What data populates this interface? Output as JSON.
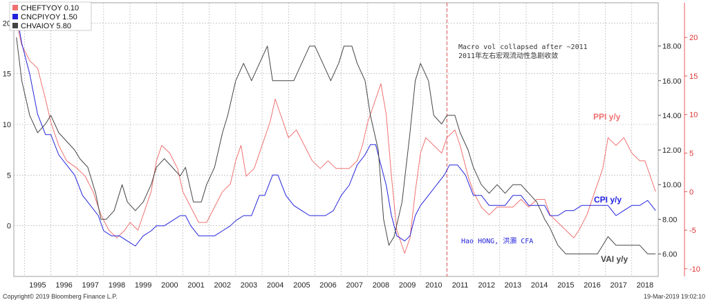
{
  "legend": [
    {
      "label": "CHEFTYOY 0.10",
      "color": "#f07070"
    },
    {
      "label": "CNCPIYOY 1.50",
      "color": "#2222dd"
    },
    {
      "label": "CHVAIOY  5.80",
      "color": "#444444"
    }
  ],
  "annotation": {
    "line1": "Macro vol collapsed after ~2011",
    "line2": "2011年左右宏观流动性急剧收敛",
    "author": "Hao HONG, 洪灝 CFA"
  },
  "series_labels": {
    "ppi": "PPI y/y",
    "cpi": "CPI y/y",
    "vai": "VAI y/y"
  },
  "footer": {
    "copyright": "Copyright© 2019 Bloomberg Finance L.P.",
    "date": "19-Mar-2019 19:02:10"
  },
  "colors": {
    "ppi": "#f07070",
    "cpi": "#2222dd",
    "vai": "#444444",
    "marker": "#e05050",
    "right_inner": "#222222",
    "right_outer": "#e03030"
  },
  "chart_data": {
    "type": "line",
    "x_ticks": [
      "1995",
      "1996",
      "1997",
      "1998",
      "1999",
      "2000",
      "2001",
      "2002",
      "2003",
      "2004",
      "2005",
      "2006",
      "2007",
      "2008",
      "2009",
      "2010",
      "2011",
      "2012",
      "2013",
      "2014",
      "2015",
      "2016",
      "2017",
      "2018"
    ],
    "x_range": [
      1994.6,
      2019.0
    ],
    "left_axis": {
      "ticks": [
        "20",
        "15",
        "10",
        "5",
        "0"
      ],
      "range": [
        -5,
        22
      ]
    },
    "right_inner_axis": {
      "ticks": [
        "18.00",
        "16.00",
        "14.00",
        "12.00",
        "10.00",
        "8.00",
        "6.00"
      ],
      "range": [
        4.7,
        20.5
      ]
    },
    "right_outer_axis": {
      "ticks": [
        "20",
        "15",
        "10",
        "5",
        "0",
        "-5",
        "-10"
      ],
      "range": [
        -11,
        24.5
      ]
    },
    "vline_x": 2011.0,
    "series": [
      {
        "name": "CHEFTYOY",
        "key": "ppi",
        "axis": "right_outer",
        "points": [
          [
            1994.7,
            22
          ],
          [
            1994.9,
            19
          ],
          [
            1995.2,
            17
          ],
          [
            1995.5,
            16
          ],
          [
            1995.8,
            12
          ],
          [
            1996.0,
            9
          ],
          [
            1996.3,
            6
          ],
          [
            1996.6,
            4
          ],
          [
            1997.0,
            3
          ],
          [
            1997.3,
            2
          ],
          [
            1997.6,
            0
          ],
          [
            1997.9,
            -3
          ],
          [
            1998.2,
            -5
          ],
          [
            1998.5,
            -6
          ],
          [
            1998.8,
            -5
          ],
          [
            1999.0,
            -4
          ],
          [
            1999.3,
            -5
          ],
          [
            1999.6,
            -2
          ],
          [
            1999.8,
            0
          ],
          [
            2000.0,
            4
          ],
          [
            2000.2,
            6
          ],
          [
            2000.5,
            5
          ],
          [
            2000.8,
            3
          ],
          [
            2001.0,
            0
          ],
          [
            2001.3,
            -2
          ],
          [
            2001.6,
            -4
          ],
          [
            2001.9,
            -4
          ],
          [
            2002.2,
            -2
          ],
          [
            2002.5,
            0
          ],
          [
            2002.8,
            1
          ],
          [
            2003.0,
            4
          ],
          [
            2003.2,
            6
          ],
          [
            2003.4,
            2
          ],
          [
            2003.7,
            3
          ],
          [
            2004.0,
            6
          ],
          [
            2004.3,
            9
          ],
          [
            2004.5,
            12
          ],
          [
            2004.8,
            9
          ],
          [
            2005.0,
            7
          ],
          [
            2005.3,
            8
          ],
          [
            2005.6,
            6
          ],
          [
            2005.9,
            4
          ],
          [
            2006.2,
            3
          ],
          [
            2006.5,
            4
          ],
          [
            2006.8,
            3
          ],
          [
            2007.0,
            3
          ],
          [
            2007.3,
            3
          ],
          [
            2007.6,
            4
          ],
          [
            2007.8,
            6
          ],
          [
            2008.0,
            9
          ],
          [
            2008.3,
            12
          ],
          [
            2008.5,
            14
          ],
          [
            2008.7,
            10
          ],
          [
            2008.9,
            2
          ],
          [
            2009.1,
            -5
          ],
          [
            2009.4,
            -8
          ],
          [
            2009.6,
            -6
          ],
          [
            2009.8,
            0
          ],
          [
            2010.0,
            5
          ],
          [
            2010.2,
            7
          ],
          [
            2010.5,
            6
          ],
          [
            2010.8,
            5
          ],
          [
            2011.0,
            7
          ],
          [
            2011.3,
            8
          ],
          [
            2011.5,
            6
          ],
          [
            2011.8,
            2
          ],
          [
            2012.0,
            0
          ],
          [
            2012.3,
            -2
          ],
          [
            2012.6,
            -3
          ],
          [
            2012.9,
            -2
          ],
          [
            2013.2,
            -2
          ],
          [
            2013.5,
            -2
          ],
          [
            2013.8,
            -1
          ],
          [
            2014.1,
            -2
          ],
          [
            2014.4,
            -1
          ],
          [
            2014.7,
            -1
          ],
          [
            2014.9,
            -3
          ],
          [
            2015.2,
            -4
          ],
          [
            2015.5,
            -5
          ],
          [
            2015.8,
            -6
          ],
          [
            2016.0,
            -5
          ],
          [
            2016.3,
            -3
          ],
          [
            2016.6,
            0
          ],
          [
            2016.9,
            3
          ],
          [
            2017.1,
            7
          ],
          [
            2017.4,
            6
          ],
          [
            2017.7,
            7
          ],
          [
            2018.0,
            5
          ],
          [
            2018.3,
            4
          ],
          [
            2018.5,
            4
          ],
          [
            2018.7,
            2
          ],
          [
            2018.9,
            0
          ]
        ]
      },
      {
        "name": "CNCPIYOY",
        "key": "cpi",
        "axis": "left",
        "points": [
          [
            1994.7,
            21
          ],
          [
            1994.9,
            18
          ],
          [
            1995.2,
            15
          ],
          [
            1995.5,
            11
          ],
          [
            1995.8,
            9
          ],
          [
            1996.0,
            9
          ],
          [
            1996.3,
            7
          ],
          [
            1996.6,
            6
          ],
          [
            1996.9,
            5
          ],
          [
            1997.2,
            3
          ],
          [
            1997.5,
            2
          ],
          [
            1997.8,
            1
          ],
          [
            1998.0,
            -0.5
          ],
          [
            1998.3,
            -1
          ],
          [
            1998.6,
            -1
          ],
          [
            1998.9,
            -1.5
          ],
          [
            1999.2,
            -2
          ],
          [
            1999.5,
            -1
          ],
          [
            1999.8,
            -0.5
          ],
          [
            2000.0,
            0
          ],
          [
            2000.3,
            0
          ],
          [
            2000.6,
            0.5
          ],
          [
            2000.9,
            1
          ],
          [
            2001.1,
            1
          ],
          [
            2001.3,
            0
          ],
          [
            2001.6,
            -1
          ],
          [
            2001.9,
            -1
          ],
          [
            2002.2,
            -1
          ],
          [
            2002.5,
            -0.5
          ],
          [
            2002.8,
            0
          ],
          [
            2003.0,
            0.5
          ],
          [
            2003.3,
            1
          ],
          [
            2003.6,
            1
          ],
          [
            2003.9,
            3
          ],
          [
            2004.1,
            3
          ],
          [
            2004.4,
            5
          ],
          [
            2004.6,
            5
          ],
          [
            2004.9,
            3
          ],
          [
            2005.2,
            2
          ],
          [
            2005.5,
            1.5
          ],
          [
            2005.8,
            1
          ],
          [
            2006.1,
            1
          ],
          [
            2006.4,
            1
          ],
          [
            2006.7,
            1.5
          ],
          [
            2007.0,
            3
          ],
          [
            2007.3,
            4
          ],
          [
            2007.6,
            6
          ],
          [
            2007.9,
            7
          ],
          [
            2008.1,
            8
          ],
          [
            2008.3,
            8
          ],
          [
            2008.5,
            6
          ],
          [
            2008.7,
            4
          ],
          [
            2008.9,
            1
          ],
          [
            2009.1,
            -1
          ],
          [
            2009.4,
            -1.5
          ],
          [
            2009.6,
            -1
          ],
          [
            2009.8,
            1
          ],
          [
            2010.0,
            2
          ],
          [
            2010.3,
            3
          ],
          [
            2010.6,
            4
          ],
          [
            2010.9,
            5
          ],
          [
            2011.1,
            6
          ],
          [
            2011.4,
            6
          ],
          [
            2011.7,
            5
          ],
          [
            2012.0,
            3
          ],
          [
            2012.3,
            3
          ],
          [
            2012.6,
            2
          ],
          [
            2012.9,
            2
          ],
          [
            2013.2,
            2
          ],
          [
            2013.5,
            3
          ],
          [
            2013.8,
            3
          ],
          [
            2014.1,
            2
          ],
          [
            2014.4,
            2
          ],
          [
            2014.7,
            2
          ],
          [
            2014.9,
            1
          ],
          [
            2015.2,
            1
          ],
          [
            2015.5,
            1.5
          ],
          [
            2015.8,
            1.5
          ],
          [
            2016.1,
            2
          ],
          [
            2016.4,
            2
          ],
          [
            2016.7,
            2
          ],
          [
            2016.9,
            2
          ],
          [
            2017.1,
            2
          ],
          [
            2017.4,
            1
          ],
          [
            2017.7,
            1.5
          ],
          [
            2018.0,
            2
          ],
          [
            2018.3,
            2
          ],
          [
            2018.6,
            2.5
          ],
          [
            2018.9,
            1.5
          ]
        ]
      },
      {
        "name": "CHVAIOY",
        "key": "vai",
        "axis": "right_inner",
        "points": [
          [
            1994.7,
            18.5
          ],
          [
            1994.9,
            16
          ],
          [
            1995.2,
            14
          ],
          [
            1995.5,
            13
          ],
          [
            1995.8,
            13.5
          ],
          [
            1996.0,
            14
          ],
          [
            1996.3,
            13
          ],
          [
            1996.6,
            12.5
          ],
          [
            1996.9,
            12
          ],
          [
            1997.1,
            11.5
          ],
          [
            1997.4,
            11
          ],
          [
            1997.7,
            9.5
          ],
          [
            1997.9,
            8
          ],
          [
            1998.1,
            8
          ],
          [
            1998.4,
            8.5
          ],
          [
            1998.7,
            10
          ],
          [
            1998.9,
            9
          ],
          [
            1999.2,
            8.5
          ],
          [
            1999.5,
            9
          ],
          [
            1999.8,
            10
          ],
          [
            2000.0,
            11
          ],
          [
            2000.3,
            11.5
          ],
          [
            2000.6,
            11
          ],
          [
            2000.9,
            10.5
          ],
          [
            2001.1,
            11
          ],
          [
            2001.4,
            9
          ],
          [
            2001.7,
            9
          ],
          [
            2001.9,
            10
          ],
          [
            2002.2,
            11
          ],
          [
            2002.5,
            13
          ],
          [
            2002.7,
            14
          ],
          [
            2003.0,
            16
          ],
          [
            2003.3,
            17
          ],
          [
            2003.6,
            16
          ],
          [
            2003.9,
            17
          ],
          [
            2004.2,
            18
          ],
          [
            2004.4,
            16
          ],
          [
            2004.7,
            16
          ],
          [
            2004.9,
            16
          ],
          [
            2005.2,
            16
          ],
          [
            2005.5,
            17
          ],
          [
            2005.8,
            18
          ],
          [
            2006.0,
            18
          ],
          [
            2006.3,
            17
          ],
          [
            2006.6,
            16
          ],
          [
            2006.9,
            17
          ],
          [
            2007.1,
            18
          ],
          [
            2007.4,
            18
          ],
          [
            2007.6,
            17
          ],
          [
            2007.9,
            16
          ],
          [
            2008.1,
            14
          ],
          [
            2008.4,
            12
          ],
          [
            2008.6,
            8
          ],
          [
            2008.8,
            6.5
          ],
          [
            2009.0,
            7
          ],
          [
            2009.3,
            9
          ],
          [
            2009.6,
            13
          ],
          [
            2009.8,
            16
          ],
          [
            2010.0,
            17
          ],
          [
            2010.3,
            16
          ],
          [
            2010.5,
            14
          ],
          [
            2010.8,
            13.5
          ],
          [
            2011.0,
            14
          ],
          [
            2011.3,
            14
          ],
          [
            2011.5,
            13
          ],
          [
            2011.8,
            12
          ],
          [
            2012.0,
            11
          ],
          [
            2012.3,
            10
          ],
          [
            2012.6,
            9.5
          ],
          [
            2012.9,
            10
          ],
          [
            2013.2,
            9.5
          ],
          [
            2013.5,
            10
          ],
          [
            2013.8,
            10
          ],
          [
            2014.1,
            9.5
          ],
          [
            2014.4,
            9
          ],
          [
            2014.7,
            8
          ],
          [
            2014.9,
            7.5
          ],
          [
            2015.2,
            6.5
          ],
          [
            2015.5,
            6
          ],
          [
            2015.8,
            6
          ],
          [
            2016.1,
            6
          ],
          [
            2016.4,
            6
          ],
          [
            2016.7,
            6
          ],
          [
            2016.9,
            6.5
          ],
          [
            2017.1,
            7
          ],
          [
            2017.4,
            6.5
          ],
          [
            2017.7,
            6.5
          ],
          [
            2018.0,
            6.5
          ],
          [
            2018.3,
            6.5
          ],
          [
            2018.6,
            6
          ],
          [
            2018.9,
            6
          ]
        ]
      }
    ]
  }
}
